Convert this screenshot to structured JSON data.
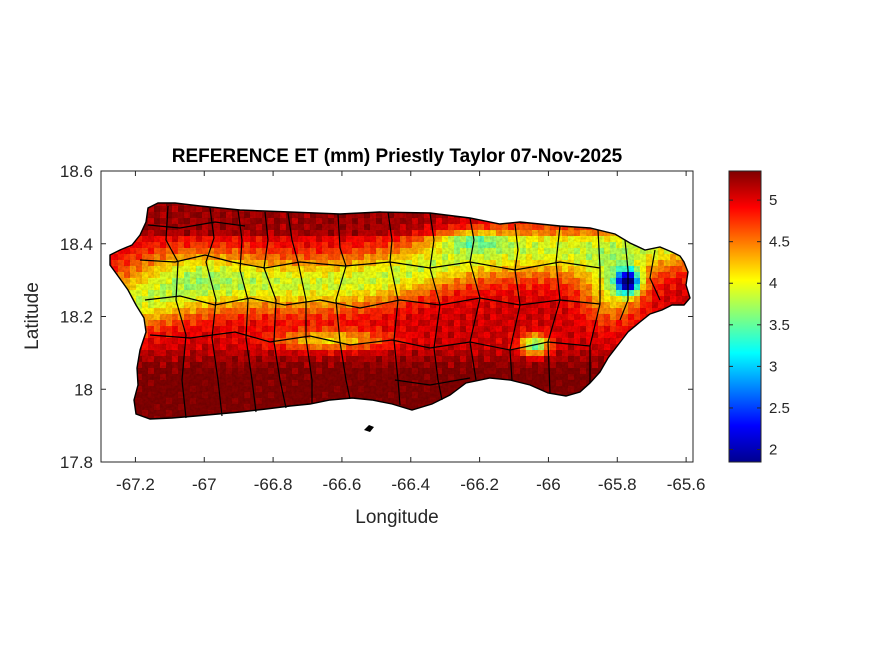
{
  "chart_data": {
    "type": "heatmap",
    "title": "REFERENCE ET (mm) Priestly Taylor 07-Nov-2025",
    "xlabel": "Longitude",
    "ylabel": "Latitude",
    "xlim": [
      -67.3,
      -65.58
    ],
    "ylim": [
      17.8,
      18.6
    ],
    "xticks": [
      "-67.2",
      "-67",
      "-66.8",
      "-66.6",
      "-66.4",
      "-66.2",
      "-66",
      "-65.8",
      "-65.6"
    ],
    "yticks": [
      "17.8",
      "18",
      "18.2",
      "18.4",
      "18.6"
    ],
    "colorbar": {
      "colormap": "jet",
      "range": [
        1.85,
        5.35
      ],
      "ticks": [
        "2",
        "2.5",
        "3",
        "3.5",
        "4",
        "4.5",
        "5"
      ]
    },
    "grid": false
  }
}
